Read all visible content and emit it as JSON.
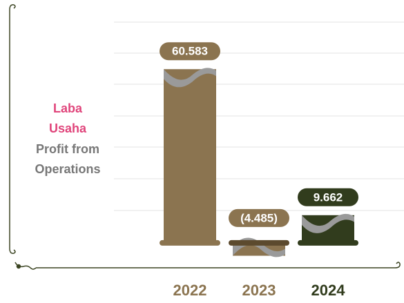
{
  "chart_data": {
    "type": "bar",
    "title_lines": [
      "Laba",
      "Usaha",
      "Profit from",
      "Operations"
    ],
    "title_colors": [
      "#e0457b",
      "#e0457b",
      "#777777",
      "#777777"
    ],
    "categories": [
      "2022",
      "2023",
      "2024"
    ],
    "values": [
      60.583,
      -4.485,
      9.662
    ],
    "value_labels": [
      "60.583",
      "(4.485)",
      "9.662"
    ],
    "colors": [
      "#8b7450",
      "#8b7450",
      "#313c1d"
    ],
    "ylim": [
      -7,
      77
    ]
  }
}
